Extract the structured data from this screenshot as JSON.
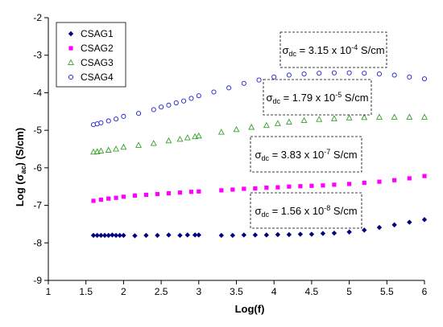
{
  "chart_data": {
    "type": "scatter",
    "xlabel": "Log(f)",
    "ylabel_main": "Log (σ",
    "ylabel_sub": "ac",
    "ylabel_tail": ") (S/cm)",
    "xlim": [
      1,
      6
    ],
    "ylim": [
      -9,
      -2
    ],
    "xticks": [
      "1",
      "1.5",
      "2",
      "2.5",
      "3",
      "3.5",
      "4",
      "4.5",
      "5",
      "5.5",
      "6"
    ],
    "yticks": [
      "-2",
      "-3",
      "-4",
      "-5",
      "-6",
      "-7",
      "-8",
      "-9"
    ],
    "legend_position": "top-left",
    "grid": false,
    "series": [
      {
        "name": "CSAG1",
        "marker": "diamond",
        "color": "#000080",
        "points": [
          [
            1.6,
            -7.8
          ],
          [
            1.65,
            -7.8
          ],
          [
            1.7,
            -7.8
          ],
          [
            1.75,
            -7.8
          ],
          [
            1.8,
            -7.8
          ],
          [
            1.85,
            -7.79
          ],
          [
            1.9,
            -7.8
          ],
          [
            1.95,
            -7.8
          ],
          [
            2.0,
            -7.8
          ],
          [
            2.15,
            -7.81
          ],
          [
            2.3,
            -7.8
          ],
          [
            2.45,
            -7.8
          ],
          [
            2.6,
            -7.79
          ],
          [
            2.75,
            -7.8
          ],
          [
            2.85,
            -7.79
          ],
          [
            2.95,
            -7.79
          ],
          [
            3.0,
            -7.79
          ],
          [
            3.3,
            -7.8
          ],
          [
            3.45,
            -7.8
          ],
          [
            3.6,
            -7.79
          ],
          [
            3.75,
            -7.79
          ],
          [
            3.9,
            -7.79
          ],
          [
            4.05,
            -7.78
          ],
          [
            4.2,
            -7.78
          ],
          [
            4.35,
            -7.77
          ],
          [
            4.5,
            -7.77
          ],
          [
            4.65,
            -7.75
          ],
          [
            4.8,
            -7.74
          ],
          [
            5.0,
            -7.71
          ],
          [
            5.2,
            -7.66
          ],
          [
            5.4,
            -7.59
          ],
          [
            5.6,
            -7.52
          ],
          [
            5.8,
            -7.45
          ],
          [
            6.0,
            -7.38
          ]
        ]
      },
      {
        "name": "CSAG2",
        "marker": "square",
        "color": "#ff00ff",
        "points": [
          [
            1.6,
            -6.88
          ],
          [
            1.7,
            -6.85
          ],
          [
            1.8,
            -6.82
          ],
          [
            1.9,
            -6.8
          ],
          [
            2.0,
            -6.77
          ],
          [
            2.15,
            -6.74
          ],
          [
            2.3,
            -6.72
          ],
          [
            2.45,
            -6.7
          ],
          [
            2.6,
            -6.68
          ],
          [
            2.75,
            -6.66
          ],
          [
            2.9,
            -6.64
          ],
          [
            3.0,
            -6.63
          ],
          [
            3.3,
            -6.6
          ],
          [
            3.45,
            -6.58
          ],
          [
            3.6,
            -6.56
          ],
          [
            3.75,
            -6.55
          ],
          [
            3.9,
            -6.53
          ],
          [
            4.05,
            -6.52
          ],
          [
            4.2,
            -6.5
          ],
          [
            4.35,
            -6.49
          ],
          [
            4.5,
            -6.48
          ],
          [
            4.65,
            -6.47
          ],
          [
            4.8,
            -6.45
          ],
          [
            5.0,
            -6.43
          ],
          [
            5.2,
            -6.4
          ],
          [
            5.4,
            -6.37
          ],
          [
            5.6,
            -6.33
          ],
          [
            5.8,
            -6.28
          ],
          [
            6.0,
            -6.22
          ]
        ]
      },
      {
        "name": "CSAG3",
        "marker": "triangle",
        "color": "#33a02c",
        "points": [
          [
            1.6,
            -5.58
          ],
          [
            1.65,
            -5.57
          ],
          [
            1.7,
            -5.55
          ],
          [
            1.8,
            -5.53
          ],
          [
            1.9,
            -5.5
          ],
          [
            2.0,
            -5.45
          ],
          [
            2.2,
            -5.4
          ],
          [
            2.4,
            -5.35
          ],
          [
            2.6,
            -5.28
          ],
          [
            2.75,
            -5.24
          ],
          [
            2.85,
            -5.2
          ],
          [
            2.95,
            -5.17
          ],
          [
            3.0,
            -5.15
          ],
          [
            3.3,
            -5.05
          ],
          [
            3.5,
            -4.98
          ],
          [
            3.7,
            -4.92
          ],
          [
            3.9,
            -4.87
          ],
          [
            4.05,
            -4.82
          ],
          [
            4.2,
            -4.78
          ],
          [
            4.4,
            -4.74
          ],
          [
            4.6,
            -4.71
          ],
          [
            4.8,
            -4.69
          ],
          [
            5.0,
            -4.67
          ],
          [
            5.2,
            -4.66
          ],
          [
            5.4,
            -4.65
          ],
          [
            5.6,
            -4.65
          ],
          [
            5.8,
            -4.65
          ],
          [
            6.0,
            -4.65
          ]
        ]
      },
      {
        "name": "CSAG4",
        "marker": "circle",
        "color": "#1f1fd6",
        "points": [
          [
            1.6,
            -4.85
          ],
          [
            1.65,
            -4.83
          ],
          [
            1.7,
            -4.8
          ],
          [
            1.8,
            -4.75
          ],
          [
            1.9,
            -4.7
          ],
          [
            2.0,
            -4.63
          ],
          [
            2.2,
            -4.55
          ],
          [
            2.4,
            -4.45
          ],
          [
            2.5,
            -4.38
          ],
          [
            2.6,
            -4.33
          ],
          [
            2.7,
            -4.27
          ],
          [
            2.8,
            -4.22
          ],
          [
            2.9,
            -4.15
          ],
          [
            3.0,
            -4.08
          ],
          [
            3.2,
            -3.98
          ],
          [
            3.4,
            -3.87
          ],
          [
            3.6,
            -3.75
          ],
          [
            3.8,
            -3.66
          ],
          [
            4.0,
            -3.58
          ],
          [
            4.2,
            -3.53
          ],
          [
            4.4,
            -3.5
          ],
          [
            4.6,
            -3.48
          ],
          [
            4.8,
            -3.47
          ],
          [
            5.0,
            -3.47
          ],
          [
            5.2,
            -3.48
          ],
          [
            5.4,
            -3.5
          ],
          [
            5.6,
            -3.53
          ],
          [
            5.8,
            -3.58
          ],
          [
            6.0,
            -3.63
          ]
        ]
      }
    ],
    "annotations": [
      {
        "lead": "σ",
        "sub": "dc",
        "mid": " = 3.15 x 10",
        "sup": "-4",
        "tail": " S/cm"
      },
      {
        "lead": "σ",
        "sub": "dc",
        "mid": " = 1.79 x 10",
        "sup": "-5",
        "tail": " S/cm"
      },
      {
        "lead": "σ",
        "sub": "dc",
        "mid": " = 3.83 x 10",
        "sup": "-7",
        "tail": " S/cm"
      },
      {
        "lead": "σ",
        "sub": "dc",
        "mid": " = 1.56 x 10",
        "sup": "-8",
        "tail": " S/cm"
      }
    ]
  }
}
